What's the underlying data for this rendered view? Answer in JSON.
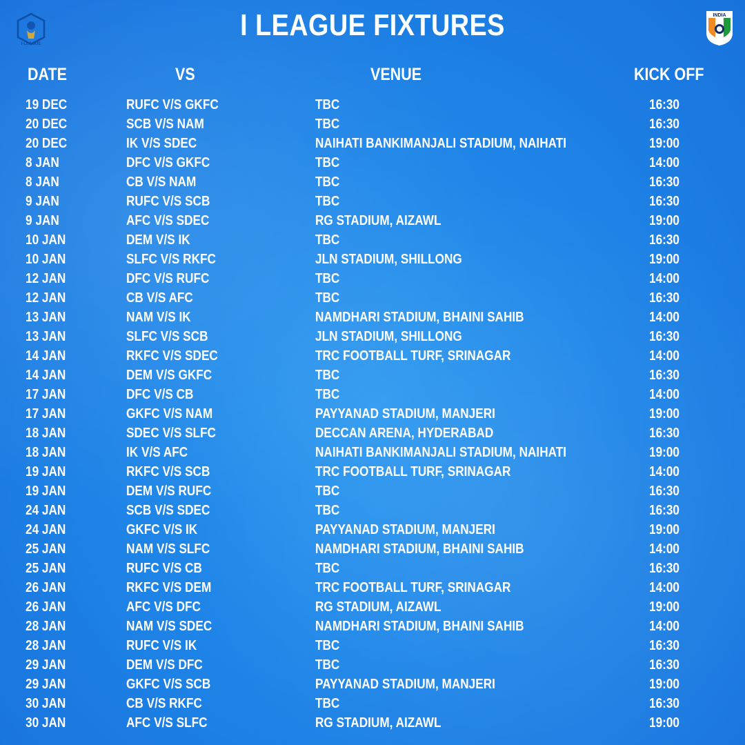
{
  "title": "I LEAGUE FIXTURES",
  "logos": {
    "left_text": "I-LEAGUE",
    "right_text": "INDIA"
  },
  "headers": {
    "date": "DATE",
    "vs": "VS",
    "venue": "VENUE",
    "kickoff": "KICK OFF"
  },
  "colors": {
    "background": "#1f86e8",
    "text": "#ffffff"
  },
  "fixtures": [
    {
      "date": "19 DEC",
      "vs": "RUFC V/S GKFC",
      "venue": "TBC",
      "kickoff": "16:30"
    },
    {
      "date": "20 DEC",
      "vs": "SCB V/S NAM",
      "venue": "TBC",
      "kickoff": "16:30"
    },
    {
      "date": "20 DEC",
      "vs": "IK V/S SDEC",
      "venue": "NAIHATI BANKIMANJALI STADIUM, NAIHATI",
      "kickoff": "19:00"
    },
    {
      "date": "8 JAN",
      "vs": "DFC V/S GKFC",
      "venue": "TBC",
      "kickoff": "14:00"
    },
    {
      "date": "8 JAN",
      "vs": "CB V/S NAM",
      "venue": "TBC",
      "kickoff": "16:30"
    },
    {
      "date": "9 JAN",
      "vs": "RUFC V/S SCB",
      "venue": "TBC",
      "kickoff": "16:30"
    },
    {
      "date": "9 JAN",
      "vs": "AFC V/S SDEC",
      "venue": "RG STADIUM, AIZAWL",
      "kickoff": "19:00"
    },
    {
      "date": "10 JAN",
      "vs": "DEM V/S IK",
      "venue": "TBC",
      "kickoff": "16:30"
    },
    {
      "date": "10 JAN",
      "vs": "SLFC V/S RKFC",
      "venue": "JLN STADIUM, SHILLONG",
      "kickoff": "19:00"
    },
    {
      "date": "12 JAN",
      "vs": "DFC V/S RUFC",
      "venue": "TBC",
      "kickoff": "14:00"
    },
    {
      "date": "12 JAN",
      "vs": "CB V/S AFC",
      "venue": "TBC",
      "kickoff": "16:30"
    },
    {
      "date": "13 JAN",
      "vs": "NAM V/S IK",
      "venue": "NAMDHARI STADIUM, BHAINI SAHIB",
      "kickoff": "14:00"
    },
    {
      "date": "13 JAN",
      "vs": "SLFC V/S SCB",
      "venue": "JLN STADIUM, SHILLONG",
      "kickoff": "16:30"
    },
    {
      "date": "14 JAN",
      "vs": "RKFC V/S SDEC",
      "venue": "TRC FOOTBALL TURF, SRINAGAR",
      "kickoff": "14:00"
    },
    {
      "date": "14 JAN",
      "vs": "DEM V/S GKFC",
      "venue": "TBC",
      "kickoff": "16:30"
    },
    {
      "date": "17 JAN",
      "vs": "DFC V/S CB",
      "venue": "TBC",
      "kickoff": "14:00"
    },
    {
      "date": "17 JAN",
      "vs": "GKFC V/S NAM",
      "venue": "PAYYANAD STADIUM, MANJERI",
      "kickoff": "19:00"
    },
    {
      "date": "18 JAN",
      "vs": "SDEC V/S SLFC",
      "venue": "DECCAN ARENA, HYDERABAD",
      "kickoff": "16:30"
    },
    {
      "date": "18 JAN",
      "vs": "IK V/S AFC",
      "venue": "NAIHATI BANKIMANJALI STADIUM, NAIHATI",
      "kickoff": "19:00"
    },
    {
      "date": "19 JAN",
      "vs": "RKFC V/S SCB",
      "venue": "TRC FOOTBALL TURF, SRINAGAR",
      "kickoff": "14:00"
    },
    {
      "date": "19 JAN",
      "vs": "DEM V/S RUFC",
      "venue": "TBC",
      "kickoff": "16:30"
    },
    {
      "date": "24 JAN",
      "vs": "SCB V/S SDEC",
      "venue": "TBC",
      "kickoff": "16:30"
    },
    {
      "date": "24 JAN",
      "vs": "GKFC V/S IK",
      "venue": "PAYYANAD STADIUM, MANJERI",
      "kickoff": "19:00"
    },
    {
      "date": "25 JAN",
      "vs": "NAM V/S SLFC",
      "venue": "NAMDHARI STADIUM, BHAINI SAHIB",
      "kickoff": "14:00"
    },
    {
      "date": "25 JAN",
      "vs": "RUFC V/S CB",
      "venue": "TBC",
      "kickoff": "16:30"
    },
    {
      "date": "26 JAN",
      "vs": "RKFC V/S DEM",
      "venue": "TRC FOOTBALL TURF, SRINAGAR",
      "kickoff": "14:00"
    },
    {
      "date": "26 JAN",
      "vs": "AFC V/S DFC",
      "venue": "RG STADIUM, AIZAWL",
      "kickoff": "19:00"
    },
    {
      "date": "28 JAN",
      "vs": "NAM V/S SDEC",
      "venue": "NAMDHARI STADIUM, BHAINI SAHIB",
      "kickoff": "14:00"
    },
    {
      "date": "28 JAN",
      "vs": "RUFC V/S IK",
      "venue": "TBC",
      "kickoff": "16:30"
    },
    {
      "date": "29 JAN",
      "vs": "DEM V/S DFC",
      "venue": "TBC",
      "kickoff": "16:30"
    },
    {
      "date": "29 JAN",
      "vs": "GKFC V/S SCB",
      "venue": "PAYYANAD STADIUM, MANJERI",
      "kickoff": "19:00"
    },
    {
      "date": "30 JAN",
      "vs": "CB V/S RKFC",
      "venue": "TBC",
      "kickoff": "16:30"
    },
    {
      "date": "30 JAN",
      "vs": "AFC V/S SLFC",
      "venue": "RG STADIUM, AIZAWL",
      "kickoff": "19:00"
    }
  ]
}
